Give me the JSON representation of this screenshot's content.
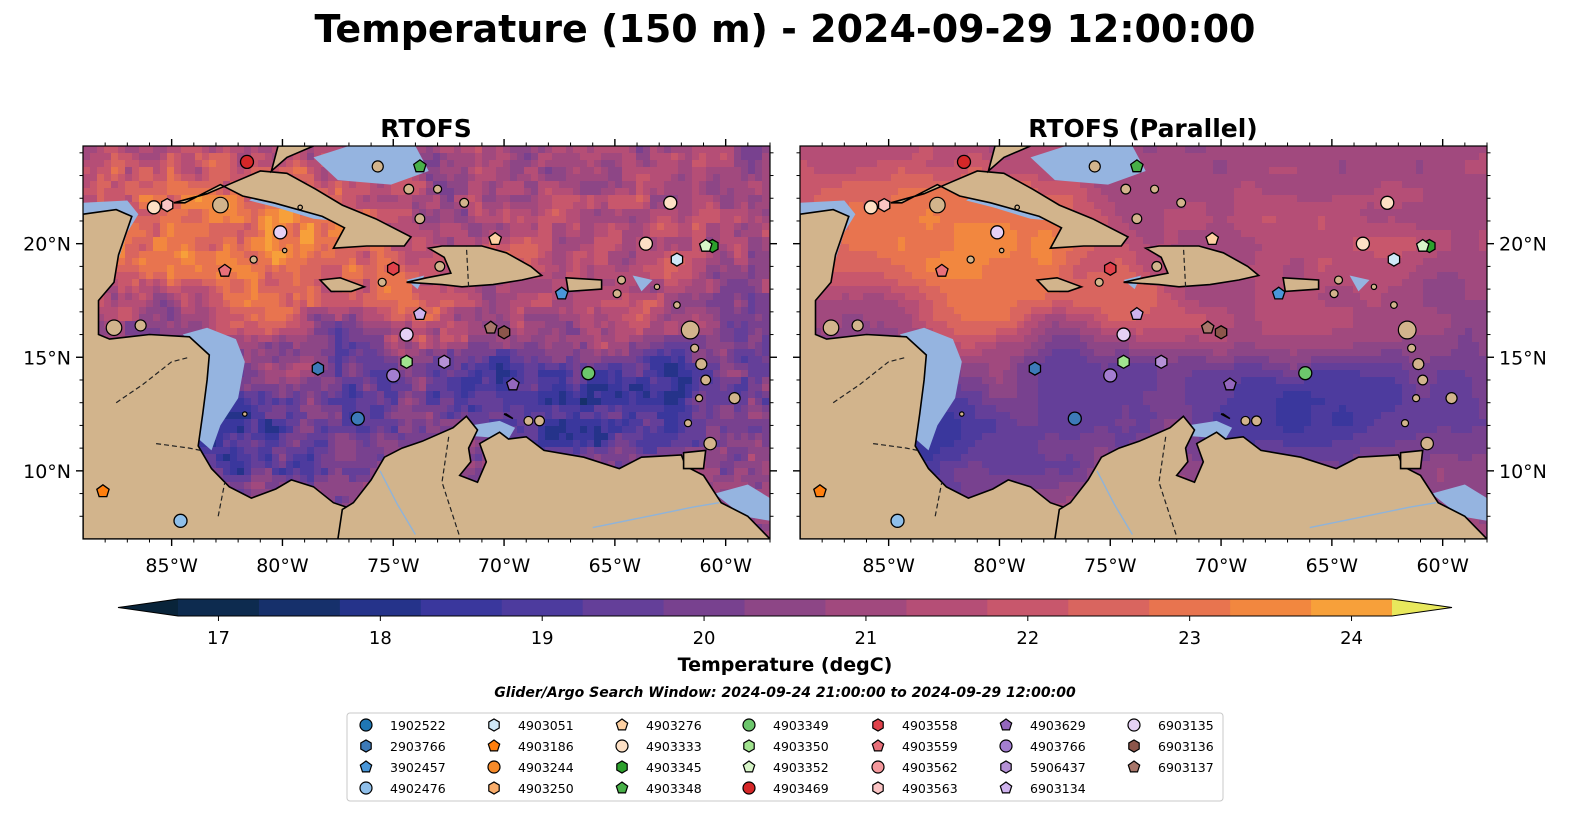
{
  "title": "Temperature (150 m) - 2024-09-29 12:00:00",
  "panels": [
    {
      "title": "RTOFS",
      "variant": "a"
    },
    {
      "title": "RTOFS (Parallel)",
      "variant": "b"
    }
  ],
  "axes": {
    "lon_range": [
      -89,
      -58
    ],
    "lat_range": [
      7,
      24.3
    ],
    "lon_ticks": [
      -85,
      -80,
      -75,
      -70,
      -65,
      -60
    ],
    "lon_tick_labels": [
      "85°W",
      "80°W",
      "75°W",
      "70°W",
      "65°W",
      "60°W"
    ],
    "lat_ticks": [
      10,
      15,
      20
    ],
    "lat_tick_labels": [
      "10°N",
      "15°N",
      "20°N"
    ]
  },
  "colorbar": {
    "label": "Temperature (degC)",
    "ticks": [
      17,
      18,
      19,
      20,
      21,
      22,
      23,
      24
    ],
    "tick_labels": [
      "17",
      "18",
      "19",
      "20",
      "21",
      "22",
      "23",
      "24"
    ],
    "range": [
      16.6,
      24.9
    ],
    "extend": "both",
    "colors": [
      "#09243a",
      "#0d2b4f",
      "#16306b",
      "#25338a",
      "#3a379d",
      "#4d3b9e",
      "#643f99",
      "#78418f",
      "#8d4686",
      "#a1497e",
      "#b54e76",
      "#c8576c",
      "#d9655f",
      "#e8744f",
      "#f2873f",
      "#f7a03a",
      "#f8ba3c",
      "#f2d24a",
      "#e8e85c"
    ]
  },
  "search_window": "Glider/Argo Search Window: 2024-09-24 21:00:00 to 2024-09-29 12:00:00",
  "map_colors": {
    "land": "#d2b48c",
    "shallow": "#95b4e0",
    "coast": "#000000"
  },
  "chart_data": {
    "type": "scatter",
    "title": "Temperature (150 m) - 2024-09-29 12:00:00",
    "series": [
      {
        "name": "1902522",
        "marker": "circle",
        "color": "#1f77b4",
        "points": []
      },
      {
        "name": "2903766",
        "marker": "hexagon",
        "color": "#3d7ab8",
        "points": [
          [
            -78.4,
            14.5
          ]
        ]
      },
      {
        "name": "3902457",
        "marker": "pentagon",
        "color": "#4a97d9",
        "points": [
          [
            -67.4,
            17.8
          ]
        ]
      },
      {
        "name": "4902476",
        "marker": "circle",
        "color": "#8fbfea",
        "points": [
          [
            -84.6,
            7.8
          ]
        ]
      },
      {
        "name": "4903051",
        "marker": "hexagon",
        "color": "#cfe8f7",
        "points": [
          [
            -62.2,
            19.3
          ]
        ]
      },
      {
        "name": "4903186",
        "marker": "pentagon",
        "color": "#ff7f0e",
        "points": [
          [
            -88.1,
            9.1
          ]
        ]
      },
      {
        "name": "4903244",
        "marker": "circle",
        "color": "#f58a2a",
        "points": []
      },
      {
        "name": "4903250",
        "marker": "hexagon",
        "color": "#f9ad6b",
        "points": []
      },
      {
        "name": "4903276",
        "marker": "pentagon",
        "color": "#fdd0a2",
        "points": [
          [
            -70.4,
            20.2
          ]
        ]
      },
      {
        "name": "4903333",
        "marker": "circle",
        "color": "#fde0c5",
        "points": [
          [
            -63.6,
            20.0
          ],
          [
            -62.5,
            21.8
          ],
          [
            -85.8,
            21.6
          ]
        ]
      },
      {
        "name": "4903345",
        "marker": "hexagon",
        "color": "#2ca02c",
        "points": [
          [
            -60.6,
            19.9
          ]
        ]
      },
      {
        "name": "4903348",
        "marker": "pentagon",
        "color": "#48b048",
        "points": [
          [
            -73.8,
            23.4
          ]
        ]
      },
      {
        "name": "4903349",
        "marker": "circle",
        "color": "#6cc66c",
        "points": [
          [
            -66.2,
            14.3
          ]
        ]
      },
      {
        "name": "4903350",
        "marker": "hexagon",
        "color": "#a1e38f",
        "points": [
          [
            -74.4,
            14.8
          ]
        ]
      },
      {
        "name": "4903352",
        "marker": "pentagon",
        "color": "#d7f5c8",
        "points": [
          [
            -60.9,
            19.9
          ]
        ]
      },
      {
        "name": "4903469",
        "marker": "circle",
        "color": "#d62728",
        "points": [
          [
            -81.6,
            23.6
          ]
        ]
      },
      {
        "name": "4903558",
        "marker": "hexagon",
        "color": "#e0414a",
        "points": [
          [
            -75.0,
            18.9
          ]
        ]
      },
      {
        "name": "4903559",
        "marker": "pentagon",
        "color": "#e8707a",
        "points": [
          [
            -82.6,
            18.8
          ]
        ]
      },
      {
        "name": "4903562",
        "marker": "circle",
        "color": "#f4989c",
        "points": []
      },
      {
        "name": "4903563",
        "marker": "hexagon",
        "color": "#fbc4c4",
        "points": [
          [
            -85.2,
            21.7
          ]
        ]
      },
      {
        "name": "4903629",
        "marker": "pentagon",
        "color": "#9467bd",
        "points": [
          [
            -69.6,
            13.8
          ]
        ]
      },
      {
        "name": "4903766",
        "marker": "circle",
        "color": "#a37ed0",
        "points": [
          [
            -75.0,
            14.2
          ]
        ]
      },
      {
        "name": "5906437",
        "marker": "hexagon",
        "color": "#b591d6",
        "points": [
          [
            -72.7,
            14.8
          ]
        ]
      },
      {
        "name": "6903134",
        "marker": "pentagon",
        "color": "#cfb3ee",
        "points": [
          [
            -73.8,
            16.9
          ]
        ]
      },
      {
        "name": "6903135",
        "marker": "circle",
        "color": "#e6d1f5",
        "points": [
          [
            -74.4,
            16.0
          ],
          [
            -80.1,
            20.5
          ]
        ]
      },
      {
        "name": "6903136",
        "marker": "hexagon",
        "color": "#8c564b",
        "points": [
          [
            -70.0,
            16.1
          ]
        ]
      },
      {
        "name": "6903137",
        "marker": "pentagon",
        "color": "#a8766a",
        "points": [
          [
            -70.6,
            16.3
          ]
        ]
      },
      {
        "name": "",
        "marker": "circle",
        "color": "#3d7ab8",
        "points": [
          [
            -76.6,
            12.3
          ]
        ]
      }
    ]
  }
}
